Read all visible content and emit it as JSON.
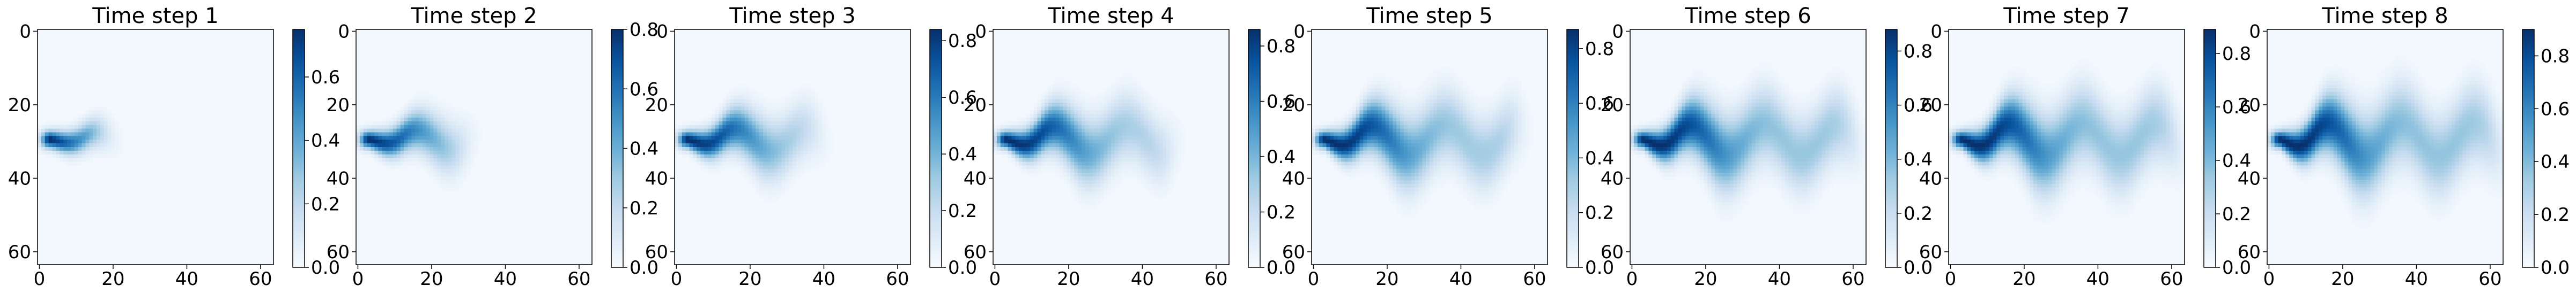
{
  "chart_data": [
    {
      "type": "heatmap",
      "title": "Time step 1",
      "x_ticks": [
        "0",
        "20",
        "40",
        "60"
      ],
      "y_ticks": [
        "0",
        "20",
        "40",
        "60"
      ],
      "xlim": [
        0,
        63
      ],
      "ylim": [
        63,
        0
      ],
      "colormap": "Blues",
      "colorbar": {
        "range": [
          0.0,
          0.75
        ],
        "ticks": [
          "0.0",
          "0.2",
          "0.4",
          "0.6"
        ]
      },
      "plume": {
        "source_row": 31,
        "source_col": 3,
        "peak": 0.75,
        "extent_col": 18,
        "spread": 4,
        "wave_amp": 2.0,
        "wave_len": 20
      }
    },
    {
      "type": "heatmap",
      "title": "Time step 2",
      "x_ticks": [
        "0",
        "20",
        "40",
        "60"
      ],
      "y_ticks": [
        "0",
        "20",
        "40",
        "60"
      ],
      "xlim": [
        0,
        63
      ],
      "ylim": [
        63,
        0
      ],
      "colormap": "Blues",
      "colorbar": {
        "range": [
          0.0,
          0.8
        ],
        "ticks": [
          "0.0",
          "0.2",
          "0.4",
          "0.6",
          "0.8"
        ]
      },
      "plume": {
        "source_row": 31,
        "source_col": 3,
        "peak": 0.8,
        "extent_col": 29,
        "spread": 6,
        "wave_amp": 2.5,
        "wave_len": 20
      }
    },
    {
      "type": "heatmap",
      "title": "Time step 3",
      "x_ticks": [
        "0",
        "20",
        "40",
        "60"
      ],
      "y_ticks": [
        "0",
        "20",
        "40",
        "60"
      ],
      "xlim": [
        0,
        63
      ],
      "ylim": [
        63,
        0
      ],
      "colormap": "Blues",
      "colorbar": {
        "range": [
          0.0,
          0.84
        ],
        "ticks": [
          "0.0",
          "0.2",
          "0.4",
          "0.6",
          "0.8"
        ]
      },
      "plume": {
        "source_row": 31,
        "source_col": 3,
        "peak": 0.84,
        "extent_col": 38,
        "spread": 7,
        "wave_amp": 3.0,
        "wave_len": 20
      }
    },
    {
      "type": "heatmap",
      "title": "Time step 4",
      "x_ticks": [
        "0",
        "20",
        "40",
        "60"
      ],
      "y_ticks": [
        "0",
        "20",
        "40",
        "60"
      ],
      "xlim": [
        0,
        63
      ],
      "ylim": [
        63,
        0
      ],
      "colormap": "Blues",
      "colorbar": {
        "range": [
          0.0,
          0.86
        ],
        "ticks": [
          "0.0",
          "0.2",
          "0.4",
          "0.6",
          "0.8"
        ]
      },
      "plume": {
        "source_row": 31,
        "source_col": 3,
        "peak": 0.86,
        "extent_col": 47,
        "spread": 8,
        "wave_amp": 3.5,
        "wave_len": 20
      }
    },
    {
      "type": "heatmap",
      "title": "Time step 5",
      "x_ticks": [
        "0",
        "20",
        "40",
        "60"
      ],
      "y_ticks": [
        "0",
        "20",
        "40",
        "60"
      ],
      "xlim": [
        0,
        63
      ],
      "ylim": [
        63,
        0
      ],
      "colormap": "Blues",
      "colorbar": {
        "range": [
          0.0,
          0.87
        ],
        "ticks": [
          "0.0",
          "0.2",
          "0.4",
          "0.6",
          "0.8"
        ]
      },
      "plume": {
        "source_row": 31,
        "source_col": 3,
        "peak": 0.87,
        "extent_col": 55,
        "spread": 9,
        "wave_amp": 3.8,
        "wave_len": 20
      }
    },
    {
      "type": "heatmap",
      "title": "Time step 6",
      "x_ticks": [
        "0",
        "20",
        "40",
        "60"
      ],
      "y_ticks": [
        "0",
        "20",
        "40",
        "60"
      ],
      "xlim": [
        0,
        63
      ],
      "ylim": [
        63,
        0
      ],
      "colormap": "Blues",
      "colorbar": {
        "range": [
          0.0,
          0.88
        ],
        "ticks": [
          "0.0",
          "0.2",
          "0.4",
          "0.6",
          "0.8"
        ]
      },
      "plume": {
        "source_row": 31,
        "source_col": 3,
        "peak": 0.88,
        "extent_col": 60,
        "spread": 9.5,
        "wave_amp": 4.0,
        "wave_len": 20
      }
    },
    {
      "type": "heatmap",
      "title": "Time step 7",
      "x_ticks": [
        "0",
        "20",
        "40",
        "60"
      ],
      "y_ticks": [
        "0",
        "20",
        "40",
        "60"
      ],
      "xlim": [
        0,
        63
      ],
      "ylim": [
        63,
        0
      ],
      "colormap": "Blues",
      "colorbar": {
        "range": [
          0.0,
          0.89
        ],
        "ticks": [
          "0.0",
          "0.2",
          "0.4",
          "0.6",
          "0.8"
        ]
      },
      "plume": {
        "source_row": 31,
        "source_col": 3,
        "peak": 0.89,
        "extent_col": 61,
        "spread": 10,
        "wave_amp": 4.2,
        "wave_len": 20
      }
    },
    {
      "type": "heatmap",
      "title": "Time step 8",
      "x_ticks": [
        "0",
        "20",
        "40",
        "60"
      ],
      "y_ticks": [
        "0",
        "20",
        "40",
        "60"
      ],
      "xlim": [
        0,
        63
      ],
      "ylim": [
        63,
        0
      ],
      "colormap": "Blues",
      "colorbar": {
        "range": [
          0.0,
          0.9
        ],
        "ticks": [
          "0.0",
          "0.2",
          "0.4",
          "0.6",
          "0.8"
        ]
      },
      "plume": {
        "source_row": 31,
        "source_col": 3,
        "peak": 0.9,
        "extent_col": 62,
        "spread": 10.5,
        "wave_amp": 4.4,
        "wave_len": 20
      }
    }
  ]
}
